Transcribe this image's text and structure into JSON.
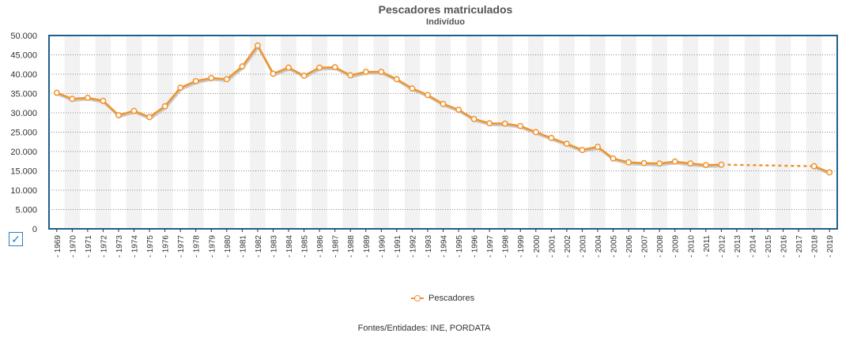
{
  "chart_data": {
    "type": "line",
    "title": "Pescadores matriculados",
    "subtitle": "Indivíduo",
    "xlabel": "",
    "ylabel": "",
    "ylim": [
      0,
      50000
    ],
    "y_ticks": [
      "0",
      "5.000",
      "10.000",
      "15.000",
      "20.000",
      "25.000",
      "30.000",
      "35.000",
      "40.000",
      "45.000",
      "50.000"
    ],
    "x": [
      "1969",
      "1970",
      "1971",
      "1972",
      "1973",
      "1974",
      "1975",
      "1976",
      "1977",
      "1978",
      "1979",
      "1980",
      "1981",
      "1982",
      "1983",
      "1984",
      "1985",
      "1986",
      "1987",
      "1988",
      "1989",
      "1990",
      "1991",
      "1992",
      "1993",
      "1994",
      "1995",
      "1996",
      "1997",
      "1998",
      "1999",
      "2000",
      "2001",
      "2002",
      "2003",
      "2004",
      "2005",
      "2006",
      "2007",
      "2008",
      "2009",
      "2010",
      "2011",
      "2012",
      "2013",
      "2014",
      "2015",
      "2016",
      "2017",
      "2018",
      "2019"
    ],
    "series": [
      {
        "name": "Pescadores",
        "color": "#f0932b",
        "values": [
          35200,
          33600,
          33900,
          33100,
          29400,
          30500,
          28900,
          31700,
          36500,
          38200,
          39000,
          38700,
          42000,
          47400,
          40100,
          41700,
          39600,
          41700,
          41800,
          39700,
          40600,
          40600,
          38700,
          36300,
          34600,
          32300,
          30800,
          28400,
          27300,
          27200,
          26600,
          25000,
          23500,
          22000,
          20400,
          21200,
          18200,
          17200,
          17000,
          16900,
          17400,
          16900,
          16500,
          16600,
          null,
          null,
          null,
          null,
          null,
          16200,
          14600
        ]
      }
    ],
    "dashed_gap": true,
    "grid": true,
    "legend_position": "bottom"
  },
  "legend": {
    "label": "Pescadores"
  },
  "source": "Fontes/Entidades: INE, PORDATA",
  "checkbox": "✓"
}
